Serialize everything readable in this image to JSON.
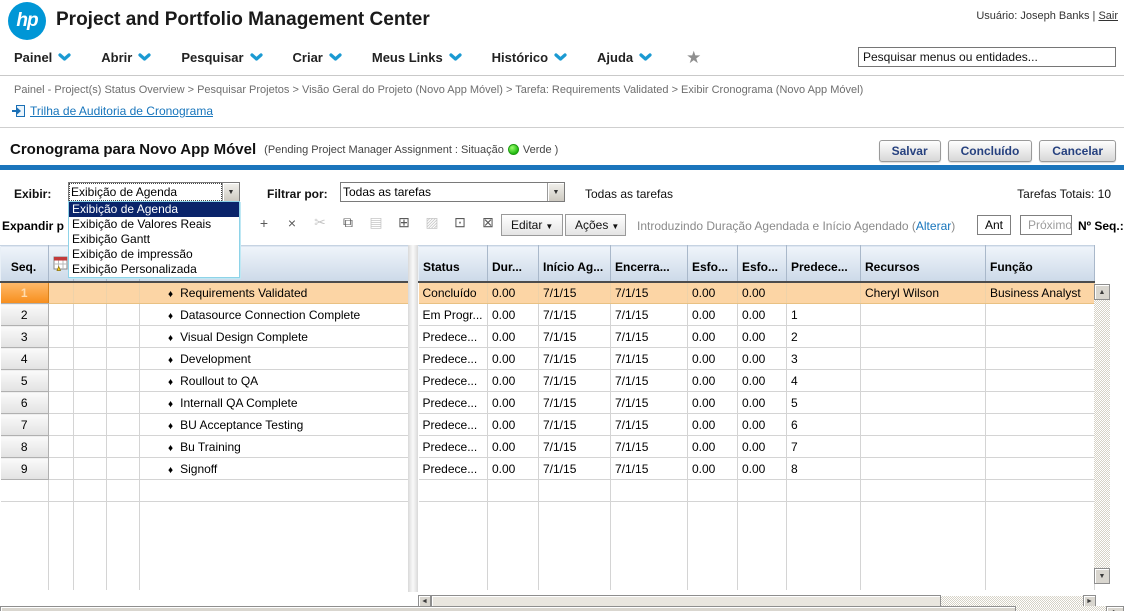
{
  "header": {
    "logo_text": "hp",
    "app_title": "Project and Portfolio Management Center",
    "user_label": "Usuário: Joseph Banks",
    "separator": "|",
    "logout_label": "Sair"
  },
  "menu": {
    "items": [
      "Painel",
      "Abrir",
      "Pesquisar",
      "Criar",
      "Meus Links",
      "Histórico",
      "Ajuda"
    ],
    "search_value": "Pesquisar menus ou entidades..."
  },
  "breadcrumb": "Painel - Project(s) Status Overview > Pesquisar Projetos > Visão Geral do Projeto (Novo App Móvel) > Tarefa: Requirements Validated > Exibir Cronograma (Novo App Móvel)",
  "audit_link_label": "Trilha de Auditoria de Cronograma",
  "page": {
    "title": "Cronograma para Novo App Móvel",
    "status_note_prefix": "(Pending Project Manager Assignment : Situação",
    "status_note_suffix": "Verde )",
    "status_color": "#22bb11",
    "save_label": "Salvar",
    "done_label": "Concluído",
    "cancel_label": "Cancelar"
  },
  "filters": {
    "view_label": "Exibir:",
    "view_value": "Exibição de Agenda",
    "view_options": [
      "Exibição de Agenda",
      "Exibição de Valores Reais",
      "Exibição Gantt",
      "Exibição de impressão",
      "Exibição Personalizada"
    ],
    "filter_label": "Filtrar por:",
    "filter_value": "Todas as tarefas",
    "filter_echo": "Todas as tarefas",
    "totals_label": "Tarefas Totais: 10"
  },
  "toolbar": {
    "expand_label": "Expandir p",
    "icons": [
      {
        "name": "add-task-icon",
        "glyph": "+",
        "enabled": true
      },
      {
        "name": "delete-task-icon",
        "glyph": "×",
        "enabled": true
      },
      {
        "name": "cut-icon",
        "glyph": "✂",
        "enabled": false
      },
      {
        "name": "copy-icon",
        "glyph": "⧉",
        "enabled": true
      },
      {
        "name": "paste-icon",
        "glyph": "▤",
        "enabled": false
      },
      {
        "name": "insert-table-icon",
        "glyph": "⊞",
        "enabled": true
      },
      {
        "name": "edit-table-icon",
        "glyph": "▨",
        "enabled": false
      },
      {
        "name": "export-pdf-icon",
        "glyph": "⊡",
        "enabled": true
      },
      {
        "name": "export-excel-icon",
        "glyph": "⊠",
        "enabled": true
      }
    ],
    "edit_button": "Editar",
    "actions_button": "Ações",
    "caret": "▼",
    "mode_text": "Introduzindo Duração Agendada e Início Agendado",
    "mode_link_open": "(",
    "mode_link": "Alterar",
    "mode_link_close": ")",
    "prev_button": "Ant",
    "next_button": "Próximo",
    "seq_label": "Nº Seq.:"
  },
  "table": {
    "seq_header": "Seq.",
    "columns": [
      {
        "key": "status",
        "label": "Status"
      },
      {
        "key": "dur",
        "label": "Dur..."
      },
      {
        "key": "start",
        "label": "Início Ag..."
      },
      {
        "key": "finish",
        "label": "Encerra..."
      },
      {
        "key": "esf1",
        "label": "Esfo..."
      },
      {
        "key": "esf2",
        "label": "Esfo..."
      },
      {
        "key": "pred",
        "label": "Predece..."
      },
      {
        "key": "resources",
        "label": "Recursos"
      },
      {
        "key": "role",
        "label": "Função"
      }
    ],
    "milestone_glyph": "♦",
    "rows": [
      {
        "seq": "1",
        "name": "Requirements Validated",
        "status": "Concluído",
        "dur": "0.00",
        "start": "7/1/15",
        "finish": "7/1/15",
        "esf1": "0.00",
        "esf2": "0.00",
        "pred": "",
        "resources": "Cheryl Wilson",
        "role": "Business Analyst",
        "selected": true
      },
      {
        "seq": "2",
        "name": "Datasource Connection Complete",
        "status": "Em Progr...",
        "dur": "0.00",
        "start": "7/1/15",
        "finish": "7/1/15",
        "esf1": "0.00",
        "esf2": "0.00",
        "pred": "1",
        "resources": "",
        "role": "",
        "selected": false
      },
      {
        "seq": "3",
        "name": "Visual Design Complete",
        "status": "Predece...",
        "dur": "0.00",
        "start": "7/1/15",
        "finish": "7/1/15",
        "esf1": "0.00",
        "esf2": "0.00",
        "pred": "2",
        "resources": "",
        "role": "",
        "selected": false
      },
      {
        "seq": "4",
        "name": "Development",
        "status": "Predece...",
        "dur": "0.00",
        "start": "7/1/15",
        "finish": "7/1/15",
        "esf1": "0.00",
        "esf2": "0.00",
        "pred": "3",
        "resources": "",
        "role": "",
        "selected": false
      },
      {
        "seq": "5",
        "name": "Roullout to QA",
        "status": "Predece...",
        "dur": "0.00",
        "start": "7/1/15",
        "finish": "7/1/15",
        "esf1": "0.00",
        "esf2": "0.00",
        "pred": "4",
        "resources": "",
        "role": "",
        "selected": false
      },
      {
        "seq": "6",
        "name": "Internall QA Complete",
        "status": "Predece...",
        "dur": "0.00",
        "start": "7/1/15",
        "finish": "7/1/15",
        "esf1": "0.00",
        "esf2": "0.00",
        "pred": "5",
        "resources": "",
        "role": "",
        "selected": false
      },
      {
        "seq": "7",
        "name": "BU Acceptance Testing",
        "status": "Predece...",
        "dur": "0.00",
        "start": "7/1/15",
        "finish": "7/1/15",
        "esf1": "0.00",
        "esf2": "0.00",
        "pred": "6",
        "resources": "",
        "role": "",
        "selected": false
      },
      {
        "seq": "8",
        "name": "Bu Training",
        "status": "Predece...",
        "dur": "0.00",
        "start": "7/1/15",
        "finish": "7/1/15",
        "esf1": "0.00",
        "esf2": "0.00",
        "pred": "7",
        "resources": "",
        "role": "",
        "selected": false
      },
      {
        "seq": "9",
        "name": "Signoff",
        "status": "Predece...",
        "dur": "0.00",
        "start": "7/1/15",
        "finish": "7/1/15",
        "esf1": "0.00",
        "esf2": "0.00",
        "pred": "8",
        "resources": "",
        "role": "",
        "selected": false
      }
    ]
  }
}
